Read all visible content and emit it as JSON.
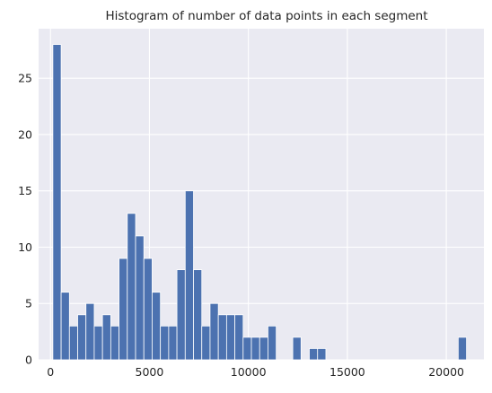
{
  "chart_data": {
    "type": "histogram",
    "title": "Histogram of number of data points in each segment",
    "xlabel": "",
    "ylabel": "",
    "xlim": [
      -600,
      21900
    ],
    "ylim": [
      0,
      29.4
    ],
    "grid": true,
    "x_ticks": [
      0,
      5000,
      10000,
      15000,
      20000
    ],
    "x_tick_labels": [
      "0",
      "5000",
      "10000",
      "15000",
      "20000"
    ],
    "y_ticks": [
      0,
      5,
      10,
      15,
      20,
      25
    ],
    "y_tick_labels": [
      "0",
      "5",
      "10",
      "15",
      "20",
      "25"
    ],
    "bin_start": 120,
    "bin_width": 418,
    "counts": [
      28,
      6,
      3,
      4,
      5,
      3,
      4,
      3,
      9,
      13,
      11,
      9,
      6,
      3,
      3,
      8,
      15,
      8,
      3,
      5,
      4,
      4,
      4,
      2,
      2,
      2,
      3,
      0,
      0,
      2,
      0,
      1,
      1,
      0,
      0,
      0,
      0,
      0,
      0,
      0,
      0,
      0,
      0,
      0,
      0,
      0,
      0,
      0,
      0,
      2
    ],
    "colors": {
      "plot_background": "#eaeaf2",
      "grid": "#ffffff",
      "bar": "#4c72b0",
      "text": "#262626"
    }
  }
}
